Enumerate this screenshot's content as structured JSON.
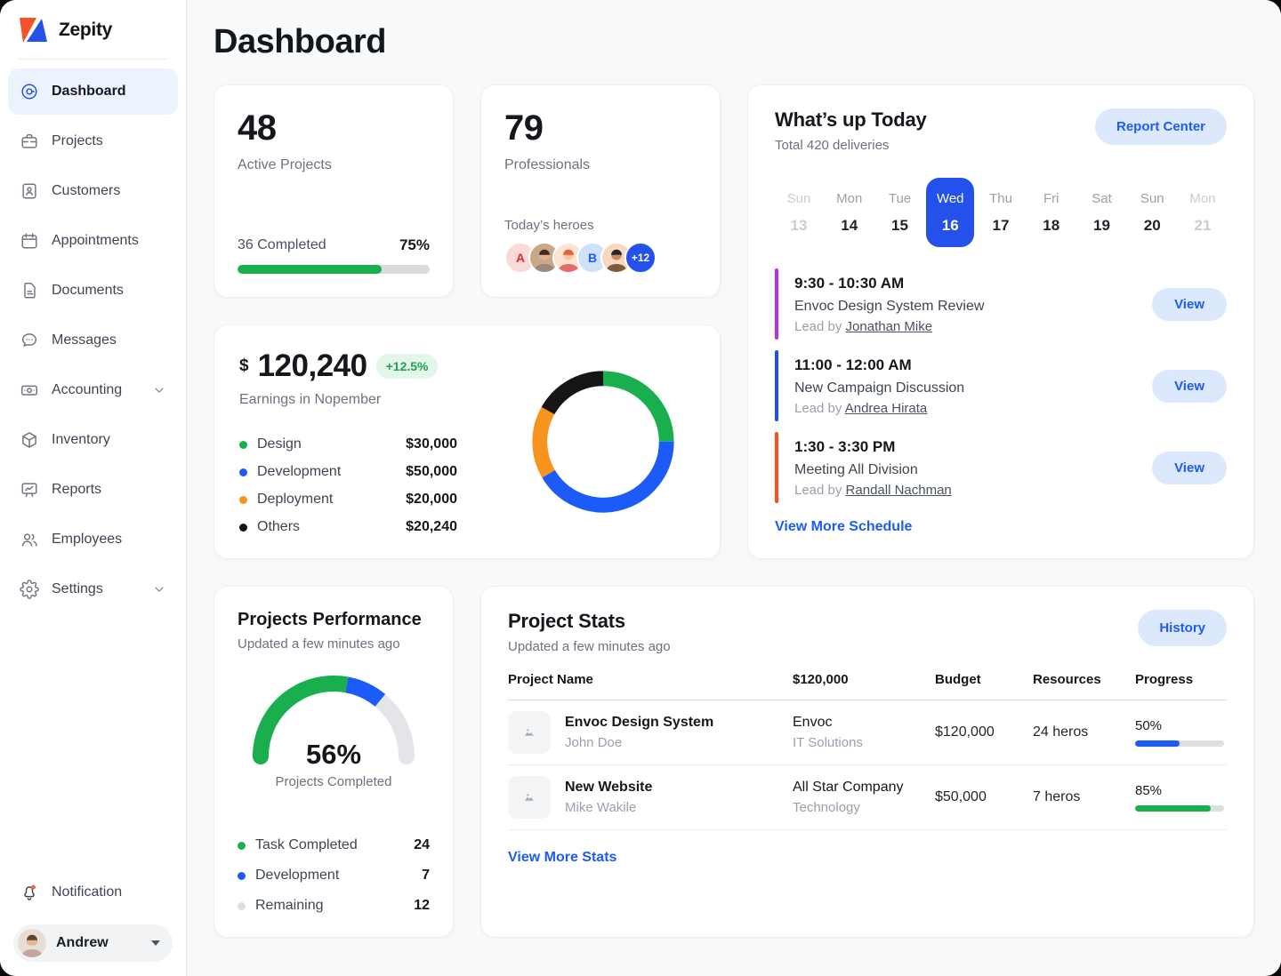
{
  "app": {
    "name": "Zepity"
  },
  "page": {
    "title": "Dashboard"
  },
  "colors": {
    "accent_blue": "#2450EB",
    "link_blue": "#1D5BF8",
    "green": "#19AF4F",
    "orange": "#F8941D",
    "badge_green": "#1FA152"
  },
  "sidebar": {
    "items": [
      {
        "id": "dashboard",
        "label": "Dashboard",
        "icon": "dashboard-icon",
        "active": true
      },
      {
        "id": "projects",
        "label": "Projects",
        "icon": "briefcase-icon"
      },
      {
        "id": "customers",
        "label": "Customers",
        "icon": "address-book-icon"
      },
      {
        "id": "appointments",
        "label": "Appointments",
        "icon": "calendar-icon"
      },
      {
        "id": "documents",
        "label": "Documents",
        "icon": "document-icon"
      },
      {
        "id": "messages",
        "label": "Messages",
        "icon": "chat-icon"
      },
      {
        "id": "accounting",
        "label": "Accounting",
        "icon": "banknote-icon",
        "expandable": true
      },
      {
        "id": "inventory",
        "label": "Inventory",
        "icon": "cube-icon"
      },
      {
        "id": "reports",
        "label": "Reports",
        "icon": "presentation-icon"
      },
      {
        "id": "employees",
        "label": "Employees",
        "icon": "users-icon"
      },
      {
        "id": "settings",
        "label": "Settings",
        "icon": "gear-icon",
        "expandable": true
      }
    ],
    "notification": {
      "label": "Notification"
    },
    "user": {
      "name": "Andrew"
    }
  },
  "stats": {
    "active_projects": {
      "value": "48",
      "label": "Active Projects",
      "completed_text": "36 Completed",
      "percent_text": "75%",
      "percent": 75,
      "bar_color": "#19AF4F"
    },
    "professionals": {
      "value": "79",
      "label": "Professionals",
      "heroes_label": "Today’s heroes",
      "avatars": [
        {
          "type": "letter",
          "text": "A",
          "bg": "#FAD9D9",
          "color": "#E02D2D"
        },
        {
          "type": "person",
          "bg": "#C9A888",
          "hair": "#3E2E22",
          "skin": "#E2B48C",
          "shirt": "#9C8878"
        },
        {
          "type": "person",
          "bg": "#FCE4D3",
          "hair": "#E8632F",
          "skin": "#F2C9A4",
          "shirt": "#E66A6A"
        },
        {
          "type": "letter",
          "text": "B",
          "bg": "#CFE2FB",
          "color": "#1D5BF8"
        },
        {
          "type": "person",
          "bg": "#F6D9BE",
          "hair": "#23262E",
          "skin": "#C98A5E",
          "shirt": "#7D5A3C"
        },
        {
          "type": "more",
          "text": "+12",
          "bg": "#2450EB",
          "color": "#FFFFFF"
        }
      ]
    }
  },
  "whats_up": {
    "title": "What’s up Today",
    "subtitle": "Total 420 deliveries",
    "report_button": "Report Center",
    "week": [
      {
        "day": "Sun",
        "date": "13",
        "state": "muted"
      },
      {
        "day": "Mon",
        "date": "14",
        "state": ""
      },
      {
        "day": "Tue",
        "date": "15",
        "state": ""
      },
      {
        "day": "Wed",
        "date": "16",
        "state": "selected"
      },
      {
        "day": "Thu",
        "date": "17",
        "state": ""
      },
      {
        "day": "Fri",
        "date": "18",
        "state": ""
      },
      {
        "day": "Sat",
        "date": "19",
        "state": ""
      },
      {
        "day": "Sun",
        "date": "20",
        "state": ""
      },
      {
        "day": "Mon",
        "date": "21",
        "state": "muted"
      }
    ],
    "events": [
      {
        "time": "9:30 - 10:30 AM",
        "title": "Envoc Design System Review",
        "lead_prefix": "Lead by",
        "lead_name": "Jonathan Mike",
        "accent": "#BB2FE8",
        "view_label": "View"
      },
      {
        "time": "11:00 - 12:00 AM",
        "title": "New Campaign Discussion",
        "lead_prefix": "Lead by",
        "lead_name": "Andrea Hirata",
        "accent": "#1D50F0",
        "view_label": "View"
      },
      {
        "time": "1:30 - 3:30 PM",
        "title": "Meeting All Division",
        "lead_prefix": "Lead by",
        "lead_name": "Randall Nachman",
        "accent": "#F4511E",
        "view_label": "View"
      }
    ],
    "view_more": "View More Schedule"
  },
  "earnings": {
    "currency": "$",
    "amount": "120,240",
    "delta": "+12.5%",
    "subtitle": "Earnings in Nopember",
    "legend": [
      {
        "label": "Design",
        "value": "$30,000",
        "color": "#19AF4F"
      },
      {
        "label": "Development",
        "value": "$50,000",
        "color": "#1D5BF8"
      },
      {
        "label": "Deployment",
        "value": "$20,000",
        "color": "#F8941D"
      },
      {
        "label": "Others",
        "value": "$20,240",
        "color": "#151515"
      }
    ]
  },
  "performance": {
    "title": "Projects Performance",
    "subtitle": "Updated a few minutes ago",
    "center_value": "56%",
    "center_label": "Projects Completed",
    "legend": [
      {
        "label": "Task Completed",
        "value": "24",
        "color": "#19AF4F"
      },
      {
        "label": "Development",
        "value": "7",
        "color": "#1D5BF8"
      },
      {
        "label": "Remaining",
        "value": "12",
        "color": "#DCDEE2"
      }
    ]
  },
  "project_stats": {
    "title": "Project Stats",
    "subtitle": "Updated a few minutes ago",
    "history_button": "History",
    "columns": [
      "Project Name",
      "$120,000",
      "Budget",
      "Resources",
      "Progress"
    ],
    "rows": [
      {
        "name": "Envoc Design System",
        "owner": "John Doe",
        "client": "Envoc",
        "client_type": "IT Solutions",
        "budget": "$120,000",
        "resources": "24 heros",
        "progress_text": "50%",
        "progress": 50,
        "bar_color": "#1D5BF8"
      },
      {
        "name": "New Website",
        "owner": "Mike Wakile",
        "client": "All Star Company",
        "client_type": "Technology",
        "budget": "$50,000",
        "resources": "7 heros",
        "progress_text": "85%",
        "progress": 85,
        "bar_color": "#19AF4F"
      }
    ],
    "view_more": "View More Stats"
  },
  "chart_data": [
    {
      "type": "pie",
      "variant": "donut",
      "title": "Earnings in Nopember",
      "total_label": "$120,240",
      "labels": [
        "Design",
        "Development",
        "Deployment",
        "Others"
      ],
      "values": [
        30000,
        50000,
        20000,
        20240
      ],
      "colors": [
        "#19AF4F",
        "#1D5BF8",
        "#F8941D",
        "#151515"
      ],
      "start_angle_deg": 0,
      "direction": "clockwise",
      "legend_position": "left"
    },
    {
      "type": "pie",
      "variant": "half-gauge",
      "title": "Projects Performance",
      "span_deg": 180,
      "labels": [
        "Task Completed",
        "Development",
        "Remaining"
      ],
      "values": [
        24,
        7,
        12
      ],
      "colors": [
        "#19AF4F",
        "#1D5BF8",
        "#E3E5E8"
      ],
      "center_label": "56%",
      "sub_label": "Projects Completed"
    }
  ]
}
